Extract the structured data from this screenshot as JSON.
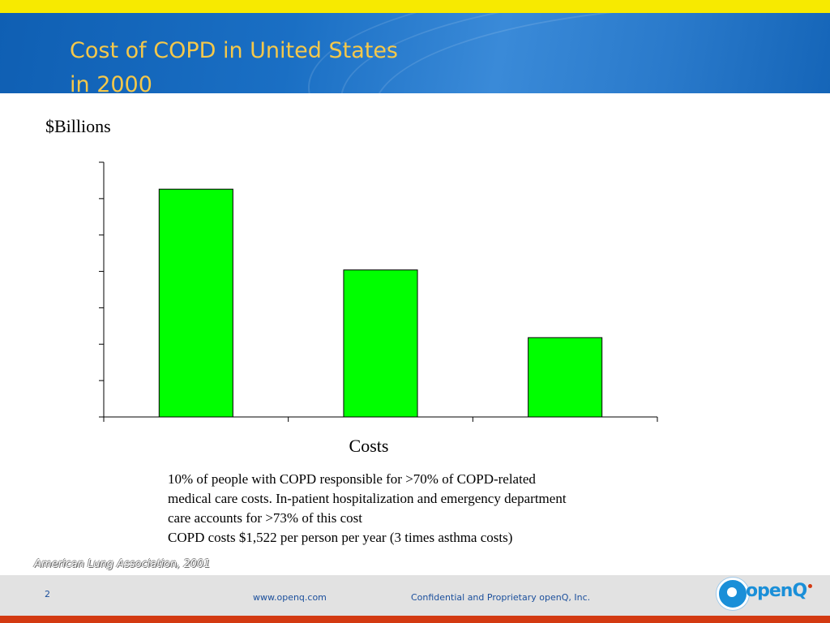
{
  "slide": {
    "title_line1": "Cost of COPD in United States",
    "title_line2": "in 2000",
    "y_unit_label": "$Billions",
    "notes": [
      "10% of people with COPD responsible for >70% of COPD-related",
      "medical care costs. In-patient hospitalization and emergency department",
      "care accounts for >73% of this cost",
      "COPD costs $1,522 per person per year (3 times asthma costs)"
    ],
    "citation": "American Lung Association, 2001"
  },
  "footer": {
    "page_number": "2",
    "website": "www.openq.com",
    "confidential": "Confidential and Proprietary openQ, Inc.",
    "logo_text": "openQ"
  },
  "colors": {
    "bar_fill": "#00ff00",
    "title": "#f5c84a",
    "header_blue": "#1a6fc4",
    "footer_text": "#1b4f9c",
    "footer_accent": "#d33a12"
  },
  "chart_data": {
    "type": "bar",
    "title": "",
    "xlabel": "Costs",
    "ylabel": "$Billions",
    "categories": [
      "",
      "",
      ""
    ],
    "values": [
      31.3,
      20.2,
      10.9
    ],
    "ylim": [
      0,
      35
    ],
    "ytick_count": 7,
    "grid": false,
    "legend": "none"
  }
}
